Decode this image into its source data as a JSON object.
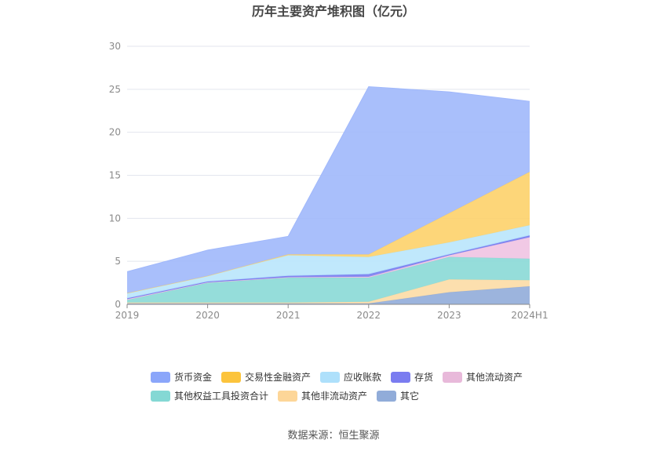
{
  "chart_data": {
    "type": "area",
    "stacked": true,
    "title": "历年主要资产堆积图（亿元）",
    "categories": [
      "2019",
      "2020",
      "2021",
      "2022",
      "2023",
      "2024H1"
    ],
    "ylim": [
      0,
      30
    ],
    "yticks": [
      0,
      5,
      10,
      15,
      20,
      25,
      30
    ],
    "grid": true,
    "legend_position": "bottom",
    "series": [
      {
        "name": "其它",
        "color": "#91acd9",
        "values": [
          0.1,
          0.1,
          0.1,
          0.1,
          1.4,
          2.1
        ]
      },
      {
        "name": "其他非流动资产",
        "color": "#fcdba5",
        "values": [
          0.1,
          0.1,
          0.1,
          0.2,
          1.5,
          0.7
        ]
      },
      {
        "name": "其他权益工具投资合计",
        "color": "#8ad9d6",
        "values": [
          0.3,
          2.3,
          2.9,
          2.8,
          2.6,
          2.5
        ]
      },
      {
        "name": "其他流动资产",
        "color": "#efc3e2",
        "values": [
          0.1,
          0.05,
          0.05,
          0.1,
          0.2,
          2.5
        ]
      },
      {
        "name": "存货",
        "color": "#7b80f0",
        "values": [
          0.1,
          0.1,
          0.15,
          0.3,
          0.1,
          0.2
        ]
      },
      {
        "name": "应收账款",
        "color": "#b9e6fc",
        "values": [
          0.6,
          0.65,
          2.4,
          2.0,
          1.4,
          1.2
        ]
      },
      {
        "name": "交易性金融资产",
        "color": "#fdd16a",
        "values": [
          0,
          0,
          0.1,
          0.3,
          3.4,
          6.2
        ]
      },
      {
        "name": "货币资金",
        "color": "#a0b8fb",
        "values": [
          2.5,
          3.0,
          2.1,
          19.5,
          14.1,
          8.2
        ]
      }
    ],
    "legend": [
      {
        "name": "货币资金",
        "color": "#8ba6fa"
      },
      {
        "name": "交易性金融资产",
        "color": "#fcc43c"
      },
      {
        "name": "应收账款",
        "color": "#aee0fb"
      },
      {
        "name": "存货",
        "color": "#7a7cf0"
      },
      {
        "name": "其他流动资产",
        "color": "#e8b9da"
      },
      {
        "name": "其他权益工具投资合计",
        "color": "#84d8d4"
      },
      {
        "name": "其他非流动资产",
        "color": "#fdd698"
      },
      {
        "name": "其它",
        "color": "#91acd9"
      }
    ]
  },
  "footer": {
    "source": "数据来源：恒生聚源"
  }
}
